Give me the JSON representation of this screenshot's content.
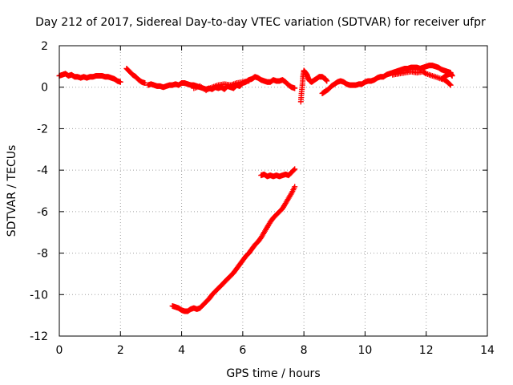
{
  "chart_data": {
    "type": "scatter",
    "title": "Day 212 of 2017, Sidereal Day-to-day VTEC variation (SDTVAR) for receiver ufpr",
    "xlabel": "GPS time / hours",
    "ylabel": "SDTVAR / TECUs",
    "xlim": [
      0,
      14
    ],
    "ylim": [
      -12,
      2
    ],
    "xticks": [
      "0",
      "2",
      "4",
      "6",
      "8",
      "10",
      "12",
      "14"
    ],
    "yticks": [
      "2",
      "0",
      "-2",
      "-4",
      "-6",
      "-8",
      "-10",
      "-12"
    ],
    "grid": true,
    "marker": "plus",
    "color": "#ff0000",
    "segments": [
      {
        "points": [
          [
            0.0,
            0.55
          ],
          [
            0.1,
            0.6
          ],
          [
            0.2,
            0.65
          ],
          [
            0.3,
            0.55
          ],
          [
            0.4,
            0.6
          ],
          [
            0.5,
            0.5
          ],
          [
            0.6,
            0.5
          ],
          [
            0.7,
            0.45
          ],
          [
            0.8,
            0.5
          ],
          [
            0.9,
            0.45
          ],
          [
            1.0,
            0.5
          ],
          [
            1.1,
            0.5
          ],
          [
            1.2,
            0.55
          ],
          [
            1.3,
            0.55
          ],
          [
            1.4,
            0.55
          ],
          [
            1.5,
            0.5
          ],
          [
            1.6,
            0.5
          ],
          [
            1.7,
            0.45
          ],
          [
            1.8,
            0.4
          ],
          [
            1.9,
            0.3
          ],
          [
            2.0,
            0.25
          ]
        ]
      },
      {
        "points": [
          [
            2.2,
            0.9
          ],
          [
            2.3,
            0.75
          ],
          [
            2.4,
            0.6
          ],
          [
            2.5,
            0.5
          ],
          [
            2.6,
            0.35
          ],
          [
            2.7,
            0.25
          ],
          [
            2.8,
            0.2
          ]
        ]
      },
      {
        "points": [
          [
            2.9,
            0.1
          ],
          [
            3.0,
            0.15
          ],
          [
            3.1,
            0.1
          ],
          [
            3.2,
            0.05
          ],
          [
            3.3,
            0.05
          ],
          [
            3.4,
            0.0
          ],
          [
            3.5,
            0.05
          ],
          [
            3.6,
            0.1
          ],
          [
            3.7,
            0.1
          ],
          [
            3.8,
            0.15
          ],
          [
            3.9,
            0.1
          ],
          [
            4.0,
            0.2
          ],
          [
            4.1,
            0.2
          ],
          [
            4.2,
            0.15
          ],
          [
            4.3,
            0.1
          ],
          [
            4.4,
            0.1
          ],
          [
            4.5,
            0.05
          ],
          [
            4.6,
            0.0
          ],
          [
            4.7,
            -0.05
          ],
          [
            4.8,
            -0.1
          ],
          [
            4.9,
            -0.05
          ],
          [
            5.0,
            -0.1
          ],
          [
            5.1,
            0.0
          ],
          [
            5.2,
            -0.05
          ],
          [
            5.3,
            0.0
          ],
          [
            5.4,
            -0.1
          ],
          [
            5.5,
            0.05
          ],
          [
            5.6,
            0.0
          ],
          [
            5.7,
            -0.05
          ],
          [
            5.8,
            0.1
          ],
          [
            5.9,
            0.05
          ],
          [
            6.0,
            0.2
          ],
          [
            6.1,
            0.25
          ],
          [
            6.2,
            0.35
          ],
          [
            6.3,
            0.4
          ],
          [
            6.4,
            0.5
          ],
          [
            6.5,
            0.45
          ],
          [
            6.6,
            0.35
          ],
          [
            6.7,
            0.3
          ],
          [
            6.8,
            0.25
          ],
          [
            6.9,
            0.25
          ],
          [
            7.0,
            0.35
          ],
          [
            7.1,
            0.3
          ],
          [
            7.2,
            0.3
          ],
          [
            7.3,
            0.35
          ],
          [
            7.4,
            0.25
          ],
          [
            7.5,
            0.1
          ],
          [
            7.6,
            0.0
          ],
          [
            7.7,
            -0.05
          ]
        ]
      },
      {
        "points": [
          [
            4.4,
            -0.05
          ],
          [
            4.6,
            0.05
          ],
          [
            4.8,
            -0.15
          ],
          [
            5.0,
            0.0
          ],
          [
            5.2,
            0.1
          ],
          [
            5.4,
            0.15
          ],
          [
            5.6,
            0.1
          ],
          [
            5.8,
            0.2
          ],
          [
            6.0,
            0.25
          ],
          [
            6.2,
            0.3
          ]
        ]
      },
      {
        "points": [
          [
            7.9,
            -0.7
          ],
          [
            7.92,
            -0.3
          ],
          [
            7.95,
            0.1
          ],
          [
            7.97,
            0.5
          ],
          [
            8.0,
            0.8
          ],
          [
            8.05,
            0.7
          ],
          [
            8.1,
            0.6
          ],
          [
            8.15,
            0.4
          ],
          [
            8.2,
            0.3
          ],
          [
            8.25,
            0.25
          ],
          [
            8.3,
            0.3
          ],
          [
            8.4,
            0.4
          ],
          [
            8.5,
            0.5
          ],
          [
            8.6,
            0.5
          ],
          [
            8.7,
            0.4
          ],
          [
            8.75,
            0.3
          ]
        ]
      },
      {
        "points": [
          [
            8.6,
            -0.3
          ],
          [
            8.7,
            -0.2
          ],
          [
            8.8,
            -0.1
          ],
          [
            8.9,
            0.05
          ],
          [
            9.0,
            0.15
          ],
          [
            9.1,
            0.25
          ],
          [
            9.2,
            0.3
          ],
          [
            9.3,
            0.25
          ],
          [
            9.4,
            0.15
          ],
          [
            9.5,
            0.1
          ],
          [
            9.6,
            0.1
          ],
          [
            9.7,
            0.1
          ],
          [
            9.8,
            0.15
          ],
          [
            9.9,
            0.15
          ],
          [
            10.0,
            0.25
          ],
          [
            10.1,
            0.3
          ],
          [
            10.2,
            0.3
          ],
          [
            10.3,
            0.35
          ],
          [
            10.4,
            0.45
          ],
          [
            10.5,
            0.5
          ],
          [
            10.6,
            0.5
          ],
          [
            10.7,
            0.6
          ],
          [
            10.8,
            0.65
          ],
          [
            10.9,
            0.7
          ],
          [
            11.0,
            0.75
          ],
          [
            11.1,
            0.8
          ],
          [
            11.2,
            0.85
          ],
          [
            11.3,
            0.9
          ],
          [
            11.4,
            0.9
          ],
          [
            11.5,
            0.95
          ],
          [
            11.6,
            0.95
          ],
          [
            11.7,
            0.95
          ],
          [
            11.8,
            0.9
          ],
          [
            11.9,
            0.95
          ],
          [
            12.0,
            1.0
          ],
          [
            12.1,
            1.05
          ],
          [
            12.2,
            1.05
          ],
          [
            12.3,
            1.0
          ],
          [
            12.4,
            0.95
          ],
          [
            12.5,
            0.85
          ],
          [
            12.6,
            0.8
          ],
          [
            12.7,
            0.75
          ],
          [
            12.8,
            0.7
          ]
        ]
      },
      {
        "points": [
          [
            10.9,
            0.6
          ],
          [
            11.1,
            0.65
          ],
          [
            11.3,
            0.7
          ],
          [
            11.5,
            0.75
          ],
          [
            11.7,
            0.7
          ],
          [
            11.9,
            0.75
          ],
          [
            12.0,
            0.65
          ],
          [
            12.2,
            0.55
          ],
          [
            12.4,
            0.45
          ],
          [
            12.6,
            0.35
          ],
          [
            12.7,
            0.25
          ],
          [
            12.8,
            0.1
          ]
        ]
      },
      {
        "points": [
          [
            12.5,
            0.4
          ],
          [
            12.6,
            0.5
          ],
          [
            12.7,
            0.6
          ],
          [
            12.8,
            0.65
          ],
          [
            12.85,
            0.55
          ]
        ]
      },
      {
        "points": [
          [
            3.7,
            -10.55
          ],
          [
            3.8,
            -10.6
          ],
          [
            3.9,
            -10.65
          ],
          [
            4.0,
            -10.75
          ],
          [
            4.1,
            -10.8
          ],
          [
            4.2,
            -10.8
          ],
          [
            4.3,
            -10.7
          ],
          [
            4.4,
            -10.65
          ],
          [
            4.5,
            -10.7
          ],
          [
            4.6,
            -10.65
          ],
          [
            4.7,
            -10.5
          ],
          [
            4.8,
            -10.35
          ],
          [
            4.9,
            -10.2
          ],
          [
            5.0,
            -10.0
          ],
          [
            5.1,
            -9.85
          ],
          [
            5.2,
            -9.7
          ],
          [
            5.3,
            -9.55
          ],
          [
            5.4,
            -9.4
          ],
          [
            5.5,
            -9.25
          ],
          [
            5.6,
            -9.1
          ],
          [
            5.7,
            -8.95
          ],
          [
            5.8,
            -8.75
          ],
          [
            5.9,
            -8.55
          ],
          [
            6.0,
            -8.35
          ],
          [
            6.1,
            -8.15
          ],
          [
            6.2,
            -8.0
          ],
          [
            6.3,
            -7.8
          ],
          [
            6.4,
            -7.6
          ],
          [
            6.5,
            -7.45
          ],
          [
            6.6,
            -7.25
          ],
          [
            6.7,
            -7.0
          ],
          [
            6.8,
            -6.75
          ],
          [
            6.9,
            -6.5
          ],
          [
            7.0,
            -6.3
          ],
          [
            7.1,
            -6.15
          ],
          [
            7.2,
            -6.0
          ],
          [
            7.3,
            -5.85
          ],
          [
            7.4,
            -5.6
          ],
          [
            7.5,
            -5.35
          ],
          [
            7.6,
            -5.1
          ],
          [
            7.7,
            -4.8
          ]
        ]
      },
      {
        "points": [
          [
            6.6,
            -4.25
          ],
          [
            6.7,
            -4.2
          ],
          [
            6.8,
            -4.3
          ],
          [
            6.9,
            -4.25
          ],
          [
            7.0,
            -4.3
          ],
          [
            7.1,
            -4.25
          ],
          [
            7.2,
            -4.3
          ],
          [
            7.3,
            -4.25
          ],
          [
            7.4,
            -4.2
          ],
          [
            7.5,
            -4.25
          ],
          [
            7.6,
            -4.1
          ],
          [
            7.7,
            -3.95
          ]
        ]
      }
    ]
  }
}
